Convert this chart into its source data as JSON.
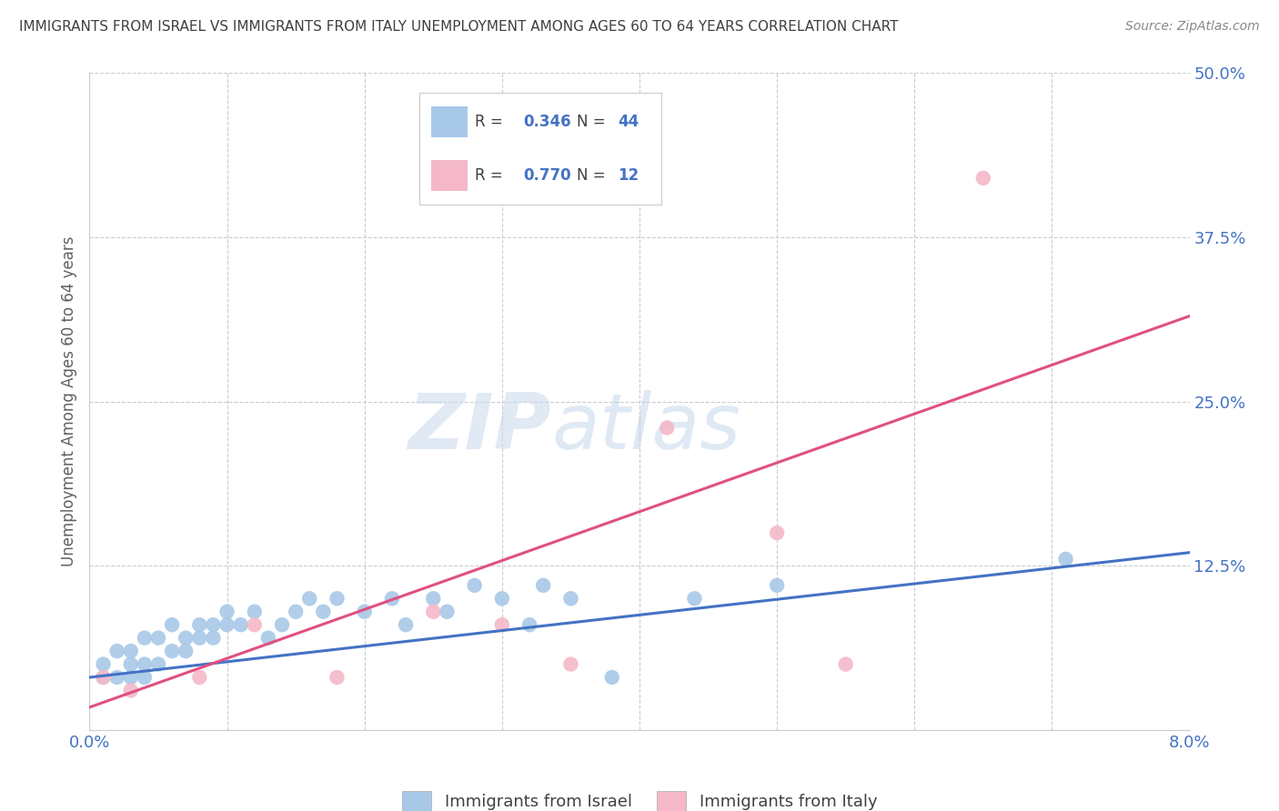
{
  "title": "IMMIGRANTS FROM ISRAEL VS IMMIGRANTS FROM ITALY UNEMPLOYMENT AMONG AGES 60 TO 64 YEARS CORRELATION CHART",
  "source": "Source: ZipAtlas.com",
  "ylabel": "Unemployment Among Ages 60 to 64 years",
  "xlim": [
    0.0,
    0.08
  ],
  "ylim": [
    0.0,
    0.5
  ],
  "xticks": [
    0.0,
    0.01,
    0.02,
    0.03,
    0.04,
    0.05,
    0.06,
    0.07,
    0.08
  ],
  "xticklabels": [
    "0.0%",
    "",
    "",
    "",
    "",
    "",
    "",
    "",
    "8.0%"
  ],
  "yticks": [
    0.0,
    0.125,
    0.25,
    0.375,
    0.5
  ],
  "yticklabels": [
    "",
    "12.5%",
    "25.0%",
    "37.5%",
    "50.0%"
  ],
  "israel_color": "#a8c8e8",
  "italy_color": "#f4b8c8",
  "israel_line_color": "#4472c4",
  "italy_line_color": "#e05080",
  "israel_R": 0.346,
  "israel_N": 44,
  "italy_R": 0.77,
  "italy_N": 12,
  "legend_israel": "Immigrants from Israel",
  "legend_italy": "Immigrants from Italy",
  "watermark_zip": "ZIP",
  "watermark_atlas": "atlas",
  "background_color": "#ffffff",
  "grid_color": "#cccccc",
  "title_color": "#404040",
  "axis_label_color": "#606060",
  "tick_label_color": "#4472c4",
  "israel_x": [
    0.001,
    0.001,
    0.002,
    0.002,
    0.003,
    0.003,
    0.003,
    0.004,
    0.004,
    0.004,
    0.005,
    0.005,
    0.006,
    0.006,
    0.007,
    0.007,
    0.008,
    0.008,
    0.009,
    0.009,
    0.01,
    0.01,
    0.011,
    0.012,
    0.013,
    0.014,
    0.015,
    0.016,
    0.017,
    0.018,
    0.02,
    0.022,
    0.023,
    0.025,
    0.026,
    0.028,
    0.03,
    0.032,
    0.033,
    0.035,
    0.038,
    0.044,
    0.05,
    0.071
  ],
  "israel_y": [
    0.04,
    0.05,
    0.04,
    0.06,
    0.04,
    0.05,
    0.06,
    0.04,
    0.05,
    0.07,
    0.05,
    0.07,
    0.06,
    0.08,
    0.06,
    0.07,
    0.07,
    0.08,
    0.07,
    0.08,
    0.08,
    0.09,
    0.08,
    0.09,
    0.07,
    0.08,
    0.09,
    0.1,
    0.09,
    0.1,
    0.09,
    0.1,
    0.08,
    0.1,
    0.09,
    0.11,
    0.1,
    0.08,
    0.11,
    0.1,
    0.04,
    0.1,
    0.11,
    0.13
  ],
  "italy_x": [
    0.001,
    0.003,
    0.008,
    0.012,
    0.018,
    0.025,
    0.03,
    0.035,
    0.042,
    0.05,
    0.055,
    0.065
  ],
  "italy_y": [
    0.04,
    0.03,
    0.04,
    0.08,
    0.04,
    0.09,
    0.08,
    0.05,
    0.23,
    0.15,
    0.05,
    0.42
  ],
  "israel_trend": [
    0.0,
    0.08,
    0.04,
    0.135
  ],
  "italy_trend": [
    -0.01,
    0.08,
    -0.02,
    0.315
  ]
}
